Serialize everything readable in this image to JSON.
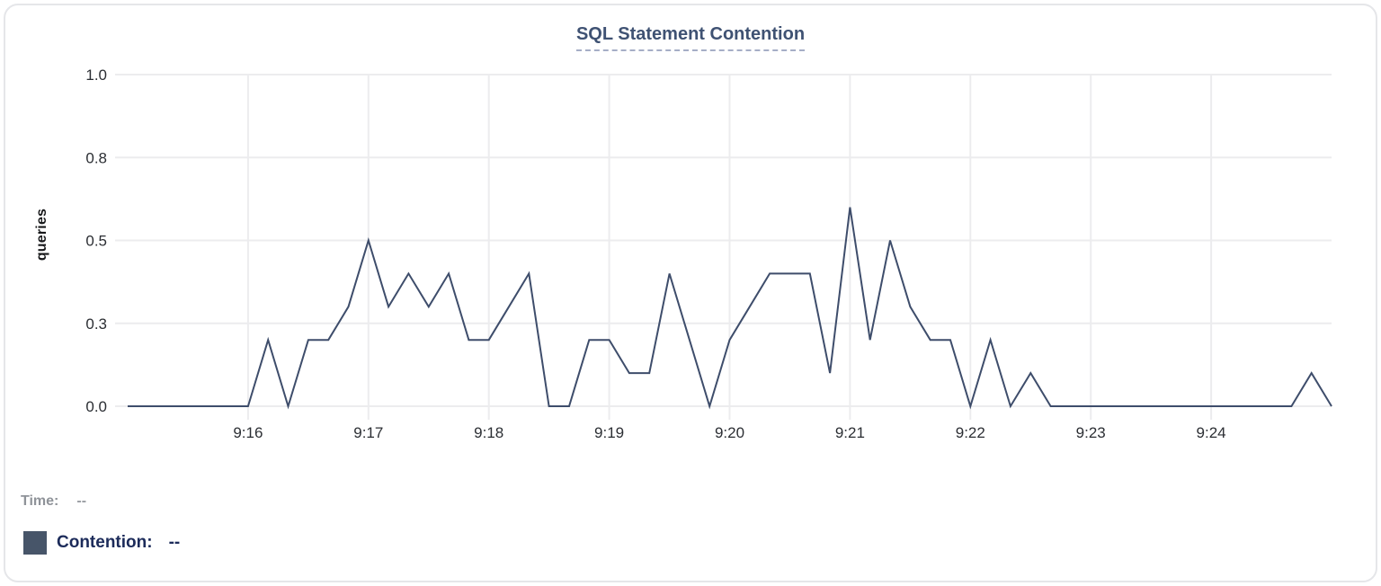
{
  "colors": {
    "line": "#3e4d6b",
    "legend_swatch": "#475569",
    "title": "#3f5273",
    "title_underline": "#a6aec6",
    "gridline": "#ececee",
    "tick_text": "#2b2e33",
    "axis_label_text": "#17181a",
    "time_text": "#8f9399",
    "contention_text": "#1c2b5a",
    "panel_border": "#e5e6e9"
  },
  "chart": {
    "title": "SQL Statement Contention",
    "y_axis_label": "queries"
  },
  "chart_data": {
    "type": "line",
    "title": "SQL Statement Contention",
    "xlabel": "",
    "ylabel": "queries",
    "ylim": [
      0,
      1.0
    ],
    "grid": true,
    "y_ticks": [
      {
        "value": 0,
        "label": "0.0"
      },
      {
        "value": 0.25,
        "label": "0.3"
      },
      {
        "value": 0.5,
        "label": "0.5"
      },
      {
        "value": 0.75,
        "label": "0.8"
      },
      {
        "value": 1.0,
        "label": "1.0"
      }
    ],
    "x_ticks": [
      "9:16",
      "9:17",
      "9:18",
      "9:19",
      "9:20",
      "9:21",
      "9:22",
      "9:23",
      "9:24"
    ],
    "x": [
      "9:15:00",
      "9:15:10",
      "9:15:20",
      "9:15:30",
      "9:15:40",
      "9:15:50",
      "9:16:00",
      "9:16:10",
      "9:16:20",
      "9:16:30",
      "9:16:40",
      "9:16:50",
      "9:17:00",
      "9:17:10",
      "9:17:20",
      "9:17:30",
      "9:17:40",
      "9:17:50",
      "9:18:00",
      "9:18:10",
      "9:18:20",
      "9:18:30",
      "9:18:40",
      "9:18:50",
      "9:19:00",
      "9:19:10",
      "9:19:20",
      "9:19:30",
      "9:19:40",
      "9:19:50",
      "9:20:00",
      "9:20:10",
      "9:20:20",
      "9:20:30",
      "9:20:40",
      "9:20:50",
      "9:21:00",
      "9:21:10",
      "9:21:20",
      "9:21:30",
      "9:21:40",
      "9:21:50",
      "9:22:00",
      "9:22:10",
      "9:22:20",
      "9:22:30",
      "9:22:40",
      "9:22:50",
      "9:23:00",
      "9:23:10",
      "9:23:20",
      "9:23:30",
      "9:23:40",
      "9:23:50",
      "9:24:00",
      "9:24:10",
      "9:24:20",
      "9:24:30",
      "9:24:40",
      "9:24:50",
      "9:25:00"
    ],
    "series": [
      {
        "name": "Contention",
        "color": "#3e4d6b",
        "values": [
          0,
          0,
          0,
          0,
          0,
          0,
          0,
          0.2,
          0,
          0.2,
          0.2,
          0.3,
          0.5,
          0.3,
          0.4,
          0.3,
          0.4,
          0.2,
          0.2,
          0.3,
          0.4,
          0,
          0,
          0.2,
          0.2,
          0.1,
          0.1,
          0.4,
          0.2,
          0,
          0.2,
          0.3,
          0.4,
          0.4,
          0.4,
          0.1,
          0.6,
          0.2,
          0.5,
          0.3,
          0.2,
          0.2,
          0,
          0.2,
          0,
          0.1,
          0,
          0,
          0,
          0,
          0,
          0,
          0,
          0,
          0,
          0,
          0,
          0,
          0,
          0.1,
          0
        ]
      }
    ],
    "legend_position": "bottom-left"
  },
  "footer": {
    "time_label": "Time:",
    "time_value": "--",
    "contention_label": "Contention:",
    "contention_value": "--"
  }
}
